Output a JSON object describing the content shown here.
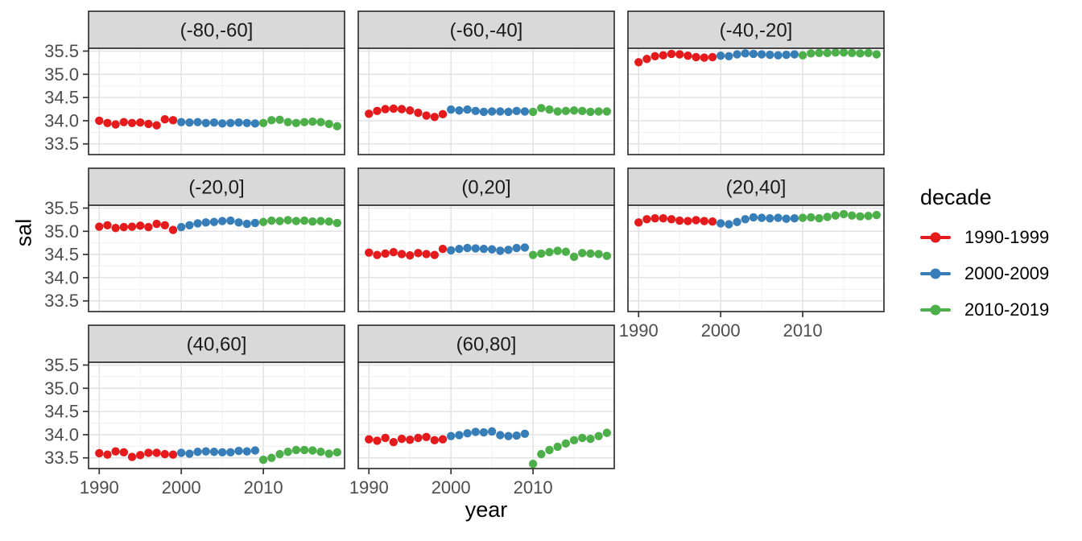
{
  "figure": {
    "xlabel": "year",
    "ylabel": "sal",
    "legend_title": "decade"
  },
  "chart_data": {
    "type": "scatter",
    "facet_variable": "latitude band",
    "x_variable": "year",
    "y_variable": "sal",
    "xlabel": "year",
    "ylabel": "sal",
    "legend_title": "decade",
    "legend_position": "right",
    "grid": "on",
    "x_ticks": [
      "1990",
      "2000",
      "2010"
    ],
    "y_ticks": [
      "35.5",
      "35.0",
      "34.5",
      "34.0",
      "33.5"
    ],
    "x_tick_values": [
      1990,
      2000,
      2010
    ],
    "y_tick_values": [
      35.5,
      35.0,
      34.5,
      34.0,
      33.5
    ],
    "x_minor_values": [
      1995,
      2005,
      2015
    ],
    "y_minor_values": [
      33.75,
      34.25,
      34.75,
      35.25
    ],
    "xlim": [
      1988.7,
      2019.9
    ],
    "ylim": [
      33.27,
      35.56
    ],
    "style": {
      "strip_bg": "#D9D9D9",
      "panel_bg": "#FFFFFF",
      "panel_border": "#333333",
      "grid_major": "#E3E3E3",
      "grid_minor": "#F1F1F1",
      "tick_color": "#333333",
      "tick_label_color": "#4D4D4D",
      "strip_text_color": "#1A1A1A"
    },
    "decades": [
      {
        "name": "1990-1999",
        "color": "#E41A1C",
        "start_year": 1990
      },
      {
        "name": "2000-2009",
        "color": "#377EB8",
        "start_year": 2000
      },
      {
        "name": "2010-2019",
        "color": "#4DAF4A",
        "start_year": 2010
      }
    ],
    "facets": [
      {
        "label": "(-80,-60]",
        "values": [
          [
            34.0,
            33.95,
            33.92,
            33.97,
            33.95,
            33.96,
            33.93,
            33.9,
            34.03,
            34.01
          ],
          [
            33.97,
            33.96,
            33.97,
            33.95,
            33.96,
            33.94,
            33.95,
            33.96,
            33.95,
            33.94
          ],
          [
            33.95,
            34.01,
            34.02,
            33.97,
            33.95,
            33.97,
            33.98,
            33.97,
            33.93,
            33.88
          ]
        ]
      },
      {
        "label": "(-60,-40]",
        "values": [
          [
            34.15,
            34.21,
            34.25,
            34.26,
            34.25,
            34.22,
            34.17,
            34.11,
            34.08,
            34.14
          ],
          [
            34.24,
            34.22,
            34.24,
            34.21,
            34.19,
            34.2,
            34.2,
            34.19,
            34.21,
            34.2
          ],
          [
            34.19,
            34.27,
            34.24,
            34.2,
            34.21,
            34.22,
            34.21,
            34.19,
            34.2,
            34.2
          ]
        ]
      },
      {
        "label": "(-40,-20]",
        "values": [
          [
            35.26,
            35.33,
            35.39,
            35.41,
            35.44,
            35.43,
            35.4,
            35.37,
            35.36,
            35.37
          ],
          [
            35.4,
            35.39,
            35.43,
            35.45,
            35.44,
            35.43,
            35.42,
            35.41,
            35.42,
            35.43
          ],
          [
            35.41,
            35.45,
            35.46,
            35.46,
            35.47,
            35.47,
            35.46,
            35.45,
            35.46,
            35.43
          ]
        ]
      },
      {
        "label": "(-20,0]",
        "values": [
          [
            35.1,
            35.13,
            35.07,
            35.09,
            35.1,
            35.12,
            35.09,
            35.16,
            35.13,
            35.03
          ],
          [
            35.09,
            35.13,
            35.17,
            35.19,
            35.2,
            35.22,
            35.23,
            35.19,
            35.16,
            35.18
          ],
          [
            35.2,
            35.23,
            35.22,
            35.24,
            35.22,
            35.23,
            35.21,
            35.22,
            35.21,
            35.18
          ]
        ]
      },
      {
        "label": "(0,20]",
        "values": [
          [
            34.54,
            34.49,
            34.52,
            34.55,
            34.51,
            34.48,
            34.53,
            34.51,
            34.49,
            34.62
          ],
          [
            34.59,
            34.62,
            34.64,
            34.63,
            34.62,
            34.61,
            34.58,
            34.6,
            34.64,
            34.65
          ],
          [
            34.49,
            34.52,
            34.55,
            34.58,
            34.56,
            34.45,
            34.53,
            34.52,
            34.51,
            34.47
          ]
        ]
      },
      {
        "label": "(20,40]",
        "values": [
          [
            35.19,
            35.26,
            35.28,
            35.28,
            35.26,
            35.23,
            35.22,
            35.24,
            35.22,
            35.21
          ],
          [
            35.17,
            35.15,
            35.2,
            35.26,
            35.3,
            35.29,
            35.28,
            35.29,
            35.27,
            35.28
          ],
          [
            35.29,
            35.3,
            35.28,
            35.31,
            35.34,
            35.37,
            35.34,
            35.32,
            35.33,
            35.35
          ]
        ]
      },
      {
        "label": "(40,60]",
        "values": [
          [
            33.6,
            33.57,
            33.64,
            33.62,
            33.52,
            33.56,
            33.61,
            33.61,
            33.58,
            33.57
          ],
          [
            33.61,
            33.59,
            33.63,
            33.64,
            33.63,
            33.62,
            33.62,
            33.65,
            33.64,
            33.66
          ],
          [
            33.46,
            33.5,
            33.58,
            33.63,
            33.67,
            33.67,
            33.66,
            33.63,
            33.59,
            33.62
          ]
        ]
      },
      {
        "label": "(60,80]",
        "values": [
          [
            33.9,
            33.87,
            33.93,
            33.84,
            33.91,
            33.89,
            33.93,
            33.95,
            33.88,
            33.9
          ],
          [
            33.97,
            33.99,
            34.03,
            34.06,
            34.05,
            34.07,
            33.99,
            33.97,
            33.98,
            34.02
          ],
          [
            33.37,
            33.58,
            33.67,
            33.74,
            33.81,
            33.88,
            33.93,
            33.91,
            33.97,
            34.04
          ]
        ]
      }
    ]
  }
}
